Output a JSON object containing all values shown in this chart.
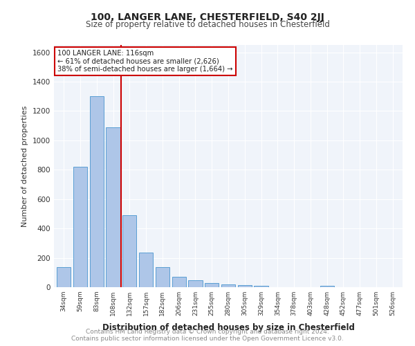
{
  "title": "100, LANGER LANE, CHESTERFIELD, S40 2JJ",
  "subtitle": "Size of property relative to detached houses in Chesterfield",
  "xlabel": "Distribution of detached houses by size in Chesterfield",
  "ylabel": "Number of detached properties",
  "categories": [
    "34sqm",
    "59sqm",
    "83sqm",
    "108sqm",
    "132sqm",
    "157sqm",
    "182sqm",
    "206sqm",
    "231sqm",
    "255sqm",
    "280sqm",
    "305sqm",
    "329sqm",
    "354sqm",
    "378sqm",
    "403sqm",
    "428sqm",
    "452sqm",
    "477sqm",
    "501sqm",
    "526sqm"
  ],
  "values": [
    135,
    820,
    1300,
    1090,
    490,
    235,
    135,
    70,
    45,
    30,
    20,
    15,
    10,
    0,
    0,
    0,
    10,
    0,
    0,
    0,
    0
  ],
  "bar_color": "#aec6e8",
  "bar_edgecolor": "#5a9fd4",
  "vline_x": 3.5,
  "vline_color": "#cc0000",
  "annotation_title": "100 LANGER LANE: 116sqm",
  "annotation_line1": "← 61% of detached houses are smaller (2,626)",
  "annotation_line2": "38% of semi-detached houses are larger (1,664) →",
  "annotation_box_color": "#cc0000",
  "ylim": [
    0,
    1650
  ],
  "yticks": [
    0,
    200,
    400,
    600,
    800,
    1000,
    1200,
    1400,
    1600
  ],
  "footer": "Contains HM Land Registry data © Crown copyright and database right 2024.\nContains public sector information licensed under the Open Government Licence v3.0.",
  "background_color": "#f0f4fa",
  "plot_background": "#f0f4fa"
}
